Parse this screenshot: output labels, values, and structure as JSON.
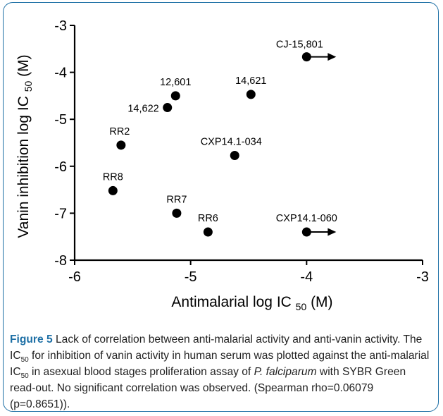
{
  "chart_data": {
    "type": "scatter",
    "xlabel_main": "Antimalarial log IC",
    "xlabel_sub": "50",
    "xlabel_unit": "(M)",
    "ylabel_main": "Vanin inhibition log IC",
    "ylabel_sub": "50",
    "ylabel_unit": "(M)",
    "xlim": [
      -6,
      -3
    ],
    "ylim": [
      -8,
      -3
    ],
    "xticks": [
      "-6",
      "-5",
      "-4",
      "-3"
    ],
    "yticks": [
      "-3",
      "-4",
      "-5",
      "-6",
      "-7",
      "-8"
    ],
    "grid": false,
    "points": [
      {
        "label": "CJ-15,801",
        "x": -4.0,
        "y": -3.67,
        "arrow": true
      },
      {
        "label": "12,601",
        "x": -5.13,
        "y": -4.5,
        "arrow": false
      },
      {
        "label": "14,621",
        "x": -4.48,
        "y": -4.47,
        "arrow": false
      },
      {
        "label": "14,622",
        "x": -5.2,
        "y": -4.75,
        "arrow": false
      },
      {
        "label": "RR2",
        "x": -5.6,
        "y": -5.55,
        "arrow": false
      },
      {
        "label": "CXP14.1-034",
        "x": -4.62,
        "y": -5.77,
        "arrow": false
      },
      {
        "label": "RR8",
        "x": -5.67,
        "y": -6.52,
        "arrow": false
      },
      {
        "label": "RR7",
        "x": -5.12,
        "y": -7.0,
        "arrow": false
      },
      {
        "label": "RR6",
        "x": -4.85,
        "y": -7.4,
        "arrow": false
      },
      {
        "label": "CXP14.1-060",
        "x": -4.0,
        "y": -7.4,
        "arrow": true
      }
    ]
  },
  "caption": {
    "figure_label": "Figure 5",
    "part1": " Lack of correlation between anti-malarial activity and anti-vanin activity. The IC",
    "sub1": "50",
    "part2": " for inhibition of vanin activity in human serum was plotted against the anti-malarial IC",
    "sub2": "50",
    "part3": " in asexual blood stages proliferation assay of ",
    "species": "P. falciparum",
    "part4": " with SYBR Green read-out. No significant correlation was observed. (Spearman rho=0.06079 (p=0.8651))."
  }
}
